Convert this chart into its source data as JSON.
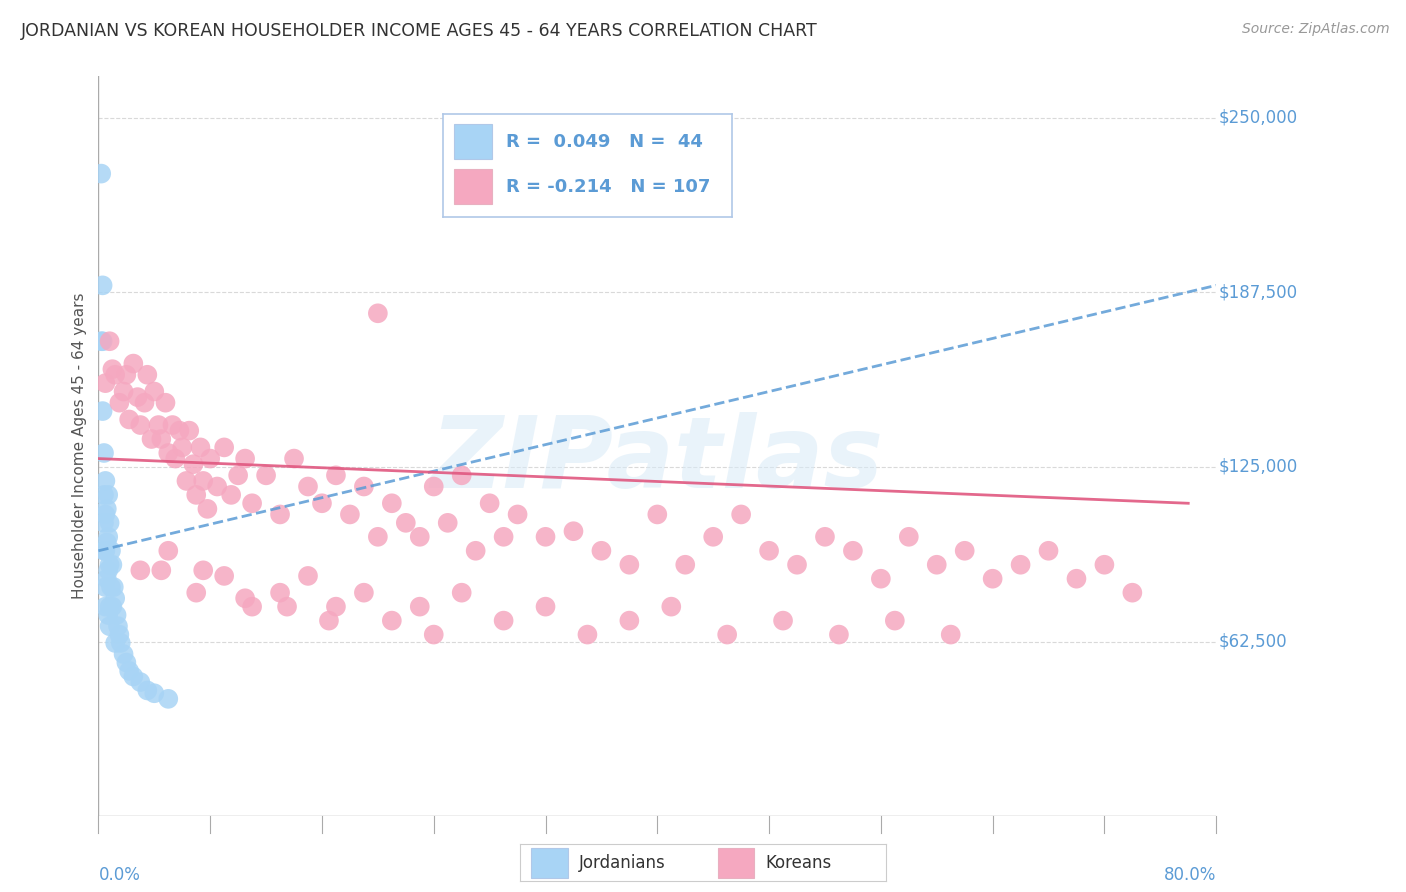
{
  "title": "JORDANIAN VS KOREAN HOUSEHOLDER INCOME AGES 45 - 64 YEARS CORRELATION CHART",
  "source": "Source: ZipAtlas.com",
  "ylabel": "Householder Income Ages 45 - 64 years",
  "yticks": [
    0,
    62500,
    125000,
    187500,
    250000
  ],
  "ytick_labels": [
    "",
    "$62,500",
    "$125,000",
    "$187,500",
    "$250,000"
  ],
  "xmin": 0.0,
  "xmax": 0.8,
  "ymin": 0,
  "ymax": 265000,
  "jordanian_color": "#a8d4f5",
  "korean_color": "#f5a8c0",
  "trend_jordan_color": "#5b9bd5",
  "trend_korean_color": "#e05880",
  "legend_line1": "R =  0.049   N =  44",
  "legend_line2": "R = -0.214   N = 107",
  "background_color": "#ffffff",
  "grid_color": "#d0d0d0",
  "watermark": "ZIPatlas",
  "title_color": "#333333",
  "source_color": "#999999",
  "axis_label_color": "#5b9bd5",
  "ylabel_color": "#555555",
  "jordanian_x": [
    0.002,
    0.003,
    0.003,
    0.003,
    0.004,
    0.004,
    0.004,
    0.004,
    0.005,
    0.005,
    0.005,
    0.005,
    0.006,
    0.006,
    0.006,
    0.007,
    0.007,
    0.007,
    0.007,
    0.008,
    0.008,
    0.008,
    0.009,
    0.009,
    0.01,
    0.01,
    0.011,
    0.012,
    0.013,
    0.014,
    0.015,
    0.016,
    0.018,
    0.02,
    0.022,
    0.025,
    0.03,
    0.035,
    0.04,
    0.05,
    0.002,
    0.005,
    0.008,
    0.012
  ],
  "jordanian_y": [
    230000,
    190000,
    170000,
    145000,
    130000,
    115000,
    105000,
    95000,
    120000,
    108000,
    95000,
    82000,
    110000,
    98000,
    85000,
    115000,
    100000,
    88000,
    72000,
    105000,
    90000,
    75000,
    95000,
    82000,
    90000,
    75000,
    82000,
    78000,
    72000,
    68000,
    65000,
    62000,
    58000,
    55000,
    52000,
    50000,
    48000,
    45000,
    44000,
    42000,
    170000,
    75000,
    68000,
    62000
  ],
  "korean_x": [
    0.005,
    0.008,
    0.01,
    0.012,
    0.015,
    0.018,
    0.02,
    0.022,
    0.025,
    0.028,
    0.03,
    0.033,
    0.035,
    0.038,
    0.04,
    0.043,
    0.045,
    0.048,
    0.05,
    0.053,
    0.055,
    0.058,
    0.06,
    0.063,
    0.065,
    0.068,
    0.07,
    0.073,
    0.075,
    0.078,
    0.08,
    0.085,
    0.09,
    0.095,
    0.1,
    0.105,
    0.11,
    0.12,
    0.13,
    0.14,
    0.15,
    0.16,
    0.17,
    0.18,
    0.19,
    0.2,
    0.21,
    0.22,
    0.23,
    0.24,
    0.25,
    0.26,
    0.27,
    0.28,
    0.29,
    0.3,
    0.32,
    0.34,
    0.36,
    0.38,
    0.4,
    0.42,
    0.44,
    0.46,
    0.48,
    0.5,
    0.52,
    0.54,
    0.56,
    0.58,
    0.6,
    0.62,
    0.64,
    0.66,
    0.68,
    0.7,
    0.72,
    0.74,
    0.03,
    0.05,
    0.07,
    0.09,
    0.11,
    0.13,
    0.15,
    0.17,
    0.19,
    0.21,
    0.23,
    0.26,
    0.29,
    0.32,
    0.35,
    0.38,
    0.41,
    0.45,
    0.49,
    0.53,
    0.57,
    0.61,
    0.045,
    0.075,
    0.105,
    0.135,
    0.165,
    0.2,
    0.24
  ],
  "korean_y": [
    155000,
    170000,
    160000,
    158000,
    148000,
    152000,
    158000,
    142000,
    162000,
    150000,
    140000,
    148000,
    158000,
    135000,
    152000,
    140000,
    135000,
    148000,
    130000,
    140000,
    128000,
    138000,
    132000,
    120000,
    138000,
    126000,
    115000,
    132000,
    120000,
    110000,
    128000,
    118000,
    132000,
    115000,
    122000,
    128000,
    112000,
    122000,
    108000,
    128000,
    118000,
    112000,
    122000,
    108000,
    118000,
    100000,
    112000,
    105000,
    100000,
    118000,
    105000,
    122000,
    95000,
    112000,
    100000,
    108000,
    100000,
    102000,
    95000,
    90000,
    108000,
    90000,
    100000,
    108000,
    95000,
    90000,
    100000,
    95000,
    85000,
    100000,
    90000,
    95000,
    85000,
    90000,
    95000,
    85000,
    90000,
    80000,
    88000,
    95000,
    80000,
    86000,
    75000,
    80000,
    86000,
    75000,
    80000,
    70000,
    75000,
    80000,
    70000,
    75000,
    65000,
    70000,
    75000,
    65000,
    70000,
    65000,
    70000,
    65000,
    88000,
    88000,
    78000,
    75000,
    70000,
    180000,
    65000
  ],
  "trend_jordan_x0": 0.0,
  "trend_jordan_y0": 95000,
  "trend_jordan_x1": 0.8,
  "trend_jordan_y1": 190000,
  "trend_korean_x0": 0.0,
  "trend_korean_y0": 128000,
  "trend_korean_x1": 0.78,
  "trend_korean_y1": 112000
}
